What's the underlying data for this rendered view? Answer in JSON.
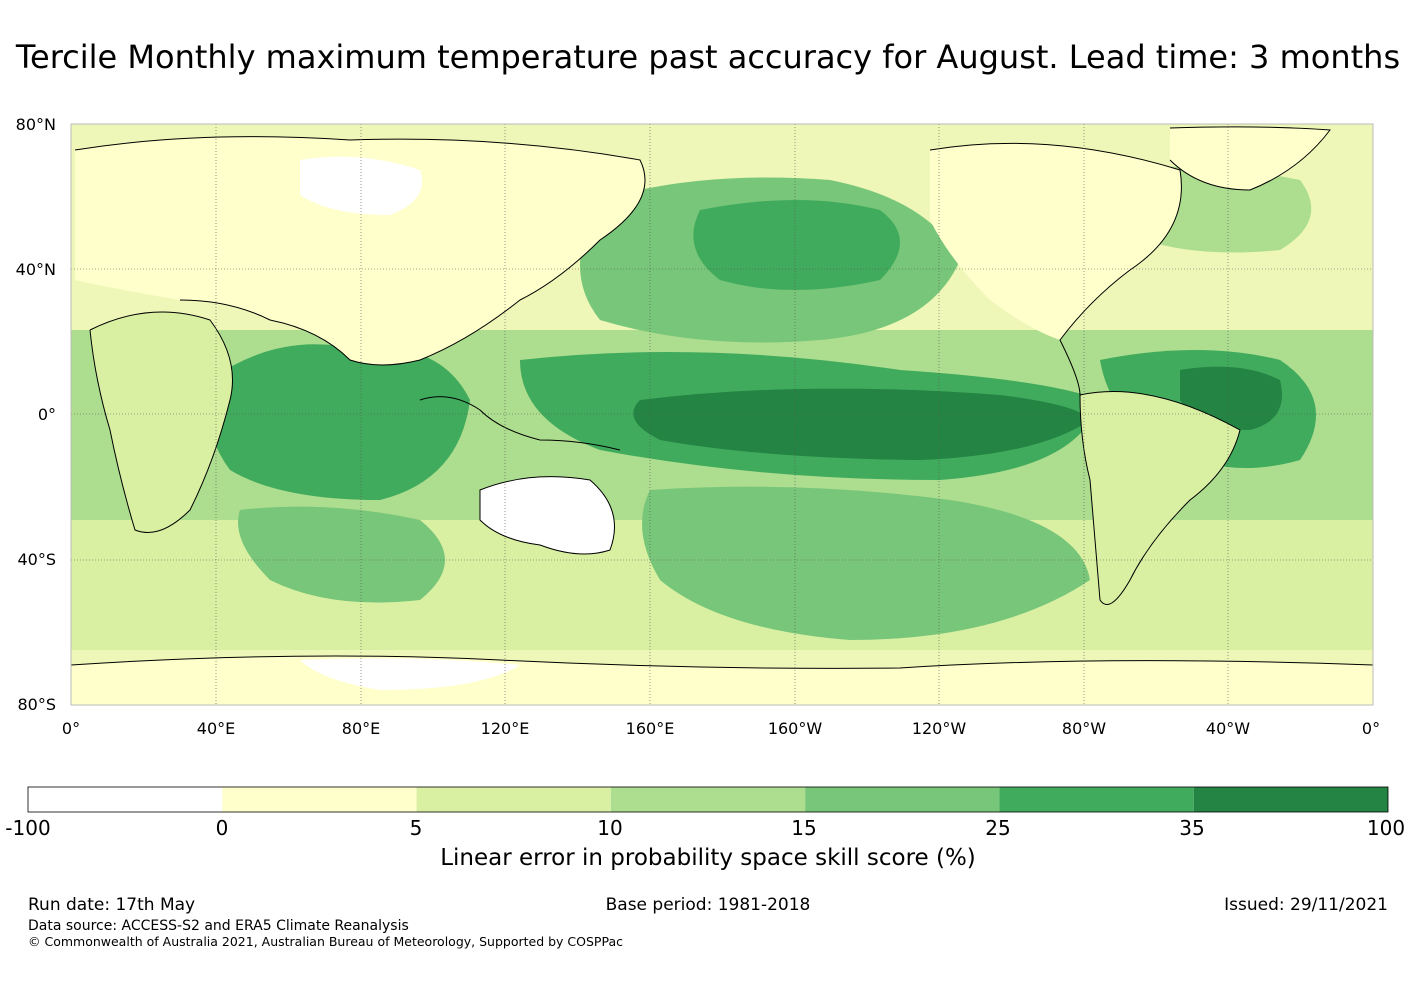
{
  "title": "Tercile Monthly maximum temperature past accuracy for August. Lead time: 3 months",
  "map": {
    "latitude_labels": [
      "80°N",
      "40°N",
      "0°",
      "40°S",
      "80°S"
    ],
    "longitude_labels": [
      "0°",
      "40°E",
      "80°E",
      "120°E",
      "160°E",
      "160°W",
      "120°W",
      "80°W",
      "40°W",
      "0°"
    ],
    "gridlines": true
  },
  "colorbar": {
    "ticks": [
      "-100",
      "0",
      "5",
      "10",
      "15",
      "25",
      "35",
      "100"
    ],
    "colors": [
      "#ffffff",
      "#ffffcc",
      "#d9f0a3",
      "#addd8e",
      "#78c679",
      "#41ab5d",
      "#238443"
    ],
    "label": "Linear error in probability space skill score (%)"
  },
  "footer": {
    "run_date": "Run date: 17th May",
    "base_period": "Base period: 1981-2018",
    "issued": "Issued: 29/11/2021",
    "data_source": "Data source: ACCESS-S2 and ERA5 Climate Reanalysis",
    "copyright": "© Commonwealth of Australia 2021, Australian Bureau of Meteorology, Supported by COSPPac"
  }
}
